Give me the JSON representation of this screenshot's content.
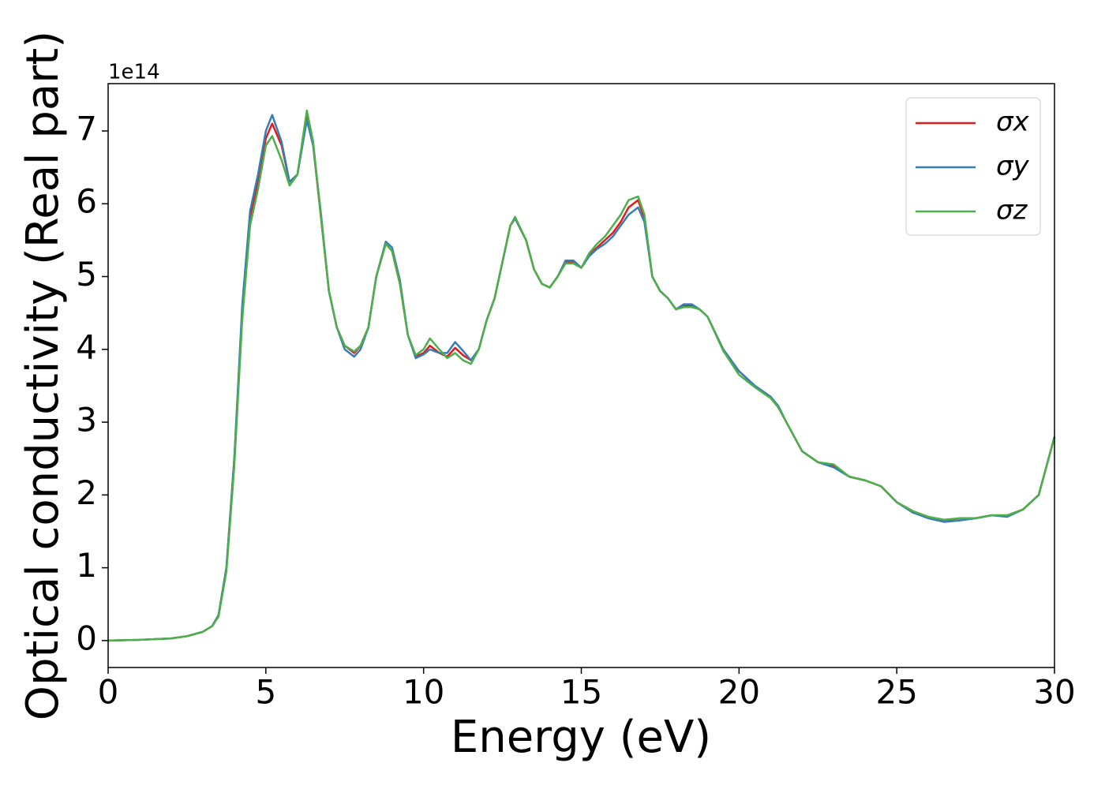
{
  "chart_data": {
    "type": "line",
    "xlabel": "Energy (eV)",
    "ylabel": "Optical conductivity (Real part)",
    "y_offset_label": "1e14",
    "x": [
      0,
      1,
      2,
      2.5,
      3,
      3.3,
      3.5,
      3.75,
      4,
      4.25,
      4.5,
      4.75,
      5,
      5.2,
      5.5,
      5.75,
      6,
      6.3,
      6.5,
      6.75,
      7,
      7.25,
      7.5,
      7.8,
      8,
      8.25,
      8.5,
      8.8,
      9,
      9.25,
      9.5,
      9.75,
      10,
      10.2,
      10.5,
      10.75,
      11,
      11.25,
      11.5,
      11.75,
      12,
      12.25,
      12.5,
      12.75,
      12.9,
      13.25,
      13.5,
      13.75,
      14,
      14.25,
      14.5,
      14.75,
      15,
      15.25,
      15.5,
      15.75,
      16,
      16.25,
      16.5,
      16.8,
      17,
      17.25,
      17.5,
      17.75,
      18,
      18.25,
      18.5,
      18.75,
      19,
      19.5,
      20,
      20.5,
      21,
      21.25,
      21.5,
      22,
      22.5,
      23,
      23.5,
      24,
      24.5,
      25,
      25.5,
      26,
      26.5,
      27,
      27.5,
      28,
      28.5,
      29,
      29.5,
      30
    ],
    "series": [
      {
        "name": "σx",
        "color": "#e41a1c",
        "values": [
          0,
          0.01,
          0.03,
          0.06,
          0.12,
          0.2,
          0.35,
          1.0,
          2.5,
          4.5,
          5.8,
          6.3,
          6.9,
          7.1,
          6.8,
          6.3,
          6.4,
          7.2,
          6.8,
          5.8,
          4.8,
          4.3,
          4.05,
          3.95,
          4.05,
          4.3,
          5.0,
          5.45,
          5.35,
          4.9,
          4.2,
          3.9,
          3.95,
          4.05,
          3.95,
          3.9,
          4.02,
          3.92,
          3.85,
          4.0,
          4.4,
          4.7,
          5.2,
          5.7,
          5.8,
          5.5,
          5.1,
          4.9,
          4.85,
          5.0,
          5.2,
          5.2,
          5.12,
          5.3,
          5.4,
          5.5,
          5.6,
          5.75,
          5.95,
          6.05,
          5.8,
          5.0,
          4.8,
          4.7,
          4.55,
          4.6,
          4.6,
          4.55,
          4.45,
          4.0,
          3.7,
          3.5,
          3.35,
          3.2,
          3.0,
          2.6,
          2.45,
          2.4,
          2.25,
          2.2,
          2.12,
          1.9,
          1.78,
          1.7,
          1.65,
          1.68,
          1.68,
          1.72,
          1.72,
          1.8,
          2.0,
          2.8
        ]
      },
      {
        "name": "σy",
        "color": "#377eb8",
        "values": [
          0,
          0.01,
          0.03,
          0.06,
          0.12,
          0.2,
          0.35,
          1.0,
          2.5,
          4.6,
          5.9,
          6.4,
          7.0,
          7.22,
          6.85,
          6.3,
          6.4,
          7.15,
          6.8,
          5.85,
          4.8,
          4.3,
          4.0,
          3.9,
          4.0,
          4.3,
          5.0,
          5.48,
          5.4,
          4.95,
          4.2,
          3.88,
          3.93,
          4.0,
          3.95,
          3.95,
          4.1,
          3.98,
          3.85,
          4.0,
          4.4,
          4.7,
          5.2,
          5.7,
          5.8,
          5.5,
          5.1,
          4.9,
          4.85,
          5.0,
          5.22,
          5.22,
          5.12,
          5.28,
          5.38,
          5.45,
          5.55,
          5.7,
          5.85,
          5.95,
          5.75,
          5.0,
          4.8,
          4.7,
          4.55,
          4.62,
          4.62,
          4.55,
          4.45,
          4.0,
          3.7,
          3.5,
          3.35,
          3.22,
          3.0,
          2.6,
          2.45,
          2.38,
          2.25,
          2.2,
          2.12,
          1.9,
          1.76,
          1.68,
          1.63,
          1.65,
          1.68,
          1.72,
          1.7,
          1.8,
          2.0,
          2.8
        ]
      },
      {
        "name": "σz",
        "color": "#4daf4a",
        "values": [
          0,
          0.01,
          0.03,
          0.06,
          0.12,
          0.2,
          0.33,
          0.95,
          2.4,
          4.4,
          5.7,
          6.2,
          6.8,
          6.93,
          6.6,
          6.25,
          6.4,
          7.28,
          6.85,
          5.8,
          4.8,
          4.3,
          4.05,
          3.97,
          4.05,
          4.3,
          5.0,
          5.45,
          5.35,
          4.9,
          4.2,
          3.92,
          4.0,
          4.15,
          4.0,
          3.88,
          3.95,
          3.85,
          3.8,
          4.0,
          4.4,
          4.7,
          5.2,
          5.7,
          5.82,
          5.5,
          5.1,
          4.9,
          4.85,
          5.0,
          5.18,
          5.18,
          5.12,
          5.32,
          5.45,
          5.55,
          5.7,
          5.85,
          6.05,
          6.1,
          5.85,
          5.0,
          4.8,
          4.7,
          4.55,
          4.58,
          4.58,
          4.55,
          4.45,
          3.98,
          3.65,
          3.48,
          3.33,
          3.2,
          3.0,
          2.6,
          2.45,
          2.42,
          2.25,
          2.2,
          2.12,
          1.9,
          1.78,
          1.7,
          1.66,
          1.68,
          1.68,
          1.72,
          1.72,
          1.8,
          2.0,
          2.8
        ]
      }
    ],
    "xlim": [
      0,
      30
    ],
    "xticks": [
      0,
      5,
      10,
      15,
      20,
      25,
      30
    ],
    "ylim": [
      -0.37,
      7.65
    ],
    "yticks": [
      0,
      1,
      2,
      3,
      4,
      5,
      6,
      7
    ],
    "grid": false,
    "legend": "upper right"
  }
}
